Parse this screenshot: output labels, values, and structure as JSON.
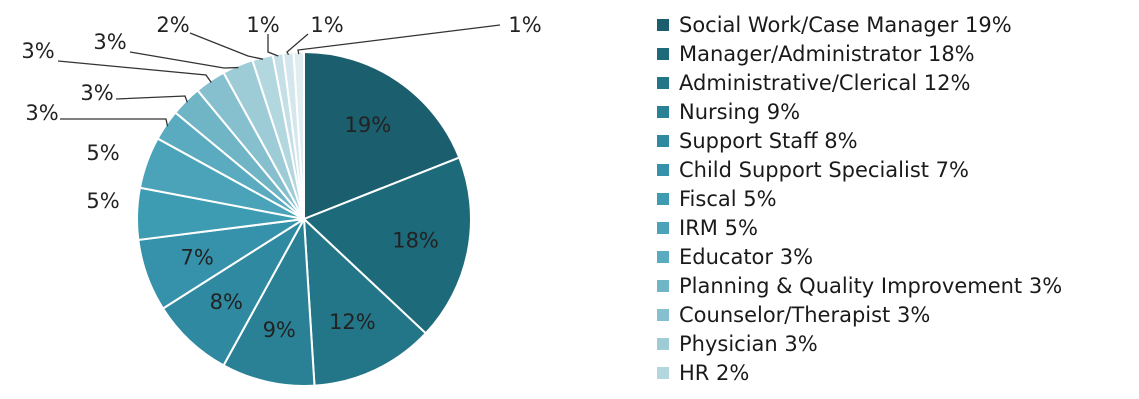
{
  "chart_data": {
    "type": "pie",
    "title": "",
    "slices": [
      {
        "label": "Social Work/Case Manager",
        "value": 19,
        "display": "19%",
        "legend": "Social Work/Case Manager 19%",
        "color": "#1b5e6e"
      },
      {
        "label": "Manager/Administrator",
        "value": 18,
        "display": "18%",
        "legend": "Manager/Administrator 18%",
        "color": "#1d6a7b"
      },
      {
        "label": "Administrative/Clerical",
        "value": 12,
        "display": "12%",
        "legend": "Administrative/Clerical 12%",
        "color": "#237688"
      },
      {
        "label": "Nursing",
        "value": 9,
        "display": "9%",
        "legend": "Nursing 9%",
        "color": "#2a8095"
      },
      {
        "label": "Support Staff",
        "value": 8,
        "display": "8%",
        "legend": "Support Staff 8%",
        "color": "#2f8aa1"
      },
      {
        "label": "Child Support Specialist",
        "value": 7,
        "display": "7%",
        "legend": "Child Support Specialist 7%",
        "color": "#3592aa"
      },
      {
        "label": "Fiscal",
        "value": 5,
        "display": "5%",
        "legend": "Fiscal 5%",
        "color": "#3d9bb2"
      },
      {
        "label": "IRM",
        "value": 5,
        "display": "5%",
        "legend": "IRM 5%",
        "color": "#4aa3b9"
      },
      {
        "label": "Educator",
        "value": 3,
        "display": "3%",
        "legend": "Educator 3%",
        "color": "#5aabbf"
      },
      {
        "label": "Planning & Quality Improvement",
        "value": 3,
        "display": "3%",
        "legend": "Planning & Quality Improvement 3%",
        "color": "#6fb5c6"
      },
      {
        "label": "Counselor/Therapist",
        "value": 3,
        "display": "3%",
        "legend": "Counselor/Therapist 3%",
        "color": "#86c0ce"
      },
      {
        "label": "Physician",
        "value": 3,
        "display": "3%",
        "legend": "Physician 3%",
        "color": "#9dccd7"
      },
      {
        "label": "HR",
        "value": 2,
        "display": "2%",
        "legend": "HR 2%",
        "color": "#b2d7df"
      },
      {
        "label": "",
        "value": 1,
        "display": "1%",
        "legend": "",
        "color": "#c4dfe6"
      },
      {
        "label": "",
        "value": 1,
        "display": "1%",
        "legend": "",
        "color": "#d3e7ec"
      },
      {
        "label": "",
        "value": 1,
        "display": "1%",
        "legend": "",
        "color": "#e0eef2"
      }
    ],
    "legend_position": "right"
  }
}
